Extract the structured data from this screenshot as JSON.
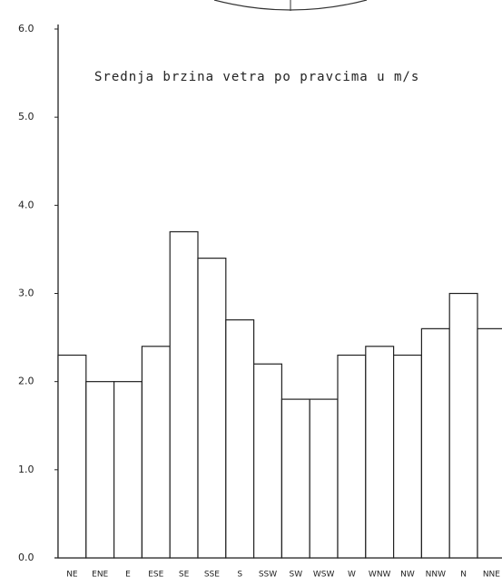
{
  "chart_data": {
    "type": "bar",
    "title": "Srednja brzina vetra  po pravcima  u m/s",
    "categories": [
      "NE",
      "ENE",
      "E",
      "ESE",
      "SE",
      "SSE",
      "S",
      "SSW",
      "SW",
      "WSW",
      "W",
      "WNW",
      "NW",
      "NNW",
      "N",
      "NNE"
    ],
    "values": [
      2.3,
      2.0,
      2.0,
      2.4,
      3.7,
      3.4,
      2.7,
      2.2,
      1.8,
      1.8,
      2.3,
      2.4,
      2.3,
      2.6,
      3.0,
      2.6
    ],
    "color": "#ffffff",
    "ylim": [
      0,
      6
    ],
    "yticks": [
      {
        "value": 0,
        "label": "0.0"
      },
      {
        "value": 1,
        "label": "1.0"
      },
      {
        "value": 2,
        "label": "2.0"
      },
      {
        "value": 3,
        "label": "3.0"
      },
      {
        "value": 4,
        "label": "4.0"
      },
      {
        "value": 5,
        "label": "5.0"
      },
      {
        "value": 6,
        "label": "6.0"
      }
    ],
    "grid": false
  }
}
